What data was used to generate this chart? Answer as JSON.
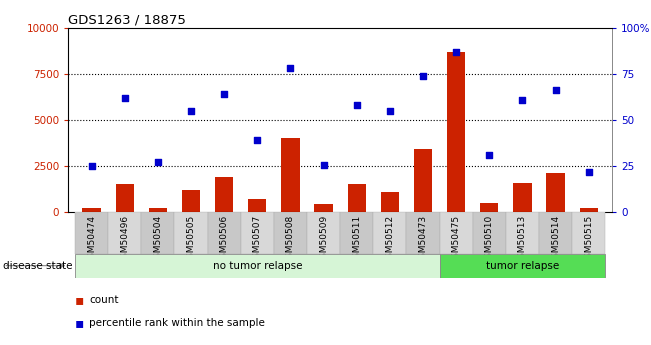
{
  "title": "GDS1263 / 18875",
  "samples": [
    "GSM50474",
    "GSM50496",
    "GSM50504",
    "GSM50505",
    "GSM50506",
    "GSM50507",
    "GSM50508",
    "GSM50509",
    "GSM50511",
    "GSM50512",
    "GSM50473",
    "GSM50475",
    "GSM50510",
    "GSM50513",
    "GSM50514",
    "GSM50515"
  ],
  "count": [
    200,
    1550,
    250,
    1200,
    1900,
    700,
    4000,
    450,
    1500,
    1100,
    3400,
    8700,
    500,
    1600,
    2100,
    250
  ],
  "percentile": [
    2500,
    6200,
    2700,
    5500,
    6400,
    3900,
    7800,
    2550,
    5800,
    5500,
    7400,
    8700,
    3100,
    6100,
    6600,
    2200
  ],
  "no_tumor_count": 11,
  "tumor_count": 5,
  "count_color": "#cc2200",
  "percentile_color": "#0000cc",
  "bar_color": "#cc2200",
  "dot_color": "#0000cc",
  "ylim_left": [
    0,
    10000
  ],
  "ylim_right": [
    0,
    100
  ],
  "yticks_left": [
    0,
    2500,
    5000,
    7500,
    10000
  ],
  "yticks_right": [
    0,
    25,
    50,
    75,
    100
  ],
  "ytick_labels_left": [
    "0",
    "2500",
    "5000",
    "7500",
    "10000"
  ],
  "ytick_labels_right": [
    "0",
    "25",
    "50",
    "75",
    "100%"
  ],
  "no_tumor_label": "no tumor relapse",
  "tumor_label": "tumor relapse",
  "disease_state_label": "disease state",
  "legend_count": "count",
  "legend_percentile": "percentile rank within the sample",
  "no_tumor_color": "#d6f5d6",
  "tumor_color": "#55dd55",
  "bar_color_left": "#cc2200",
  "axis_color_left": "#cc2200",
  "axis_color_right": "#0000cc",
  "title_color": "#000000",
  "bar_width": 0.55,
  "chart_bg": "#ffffff",
  "xtick_bg": "#d0d0d0"
}
